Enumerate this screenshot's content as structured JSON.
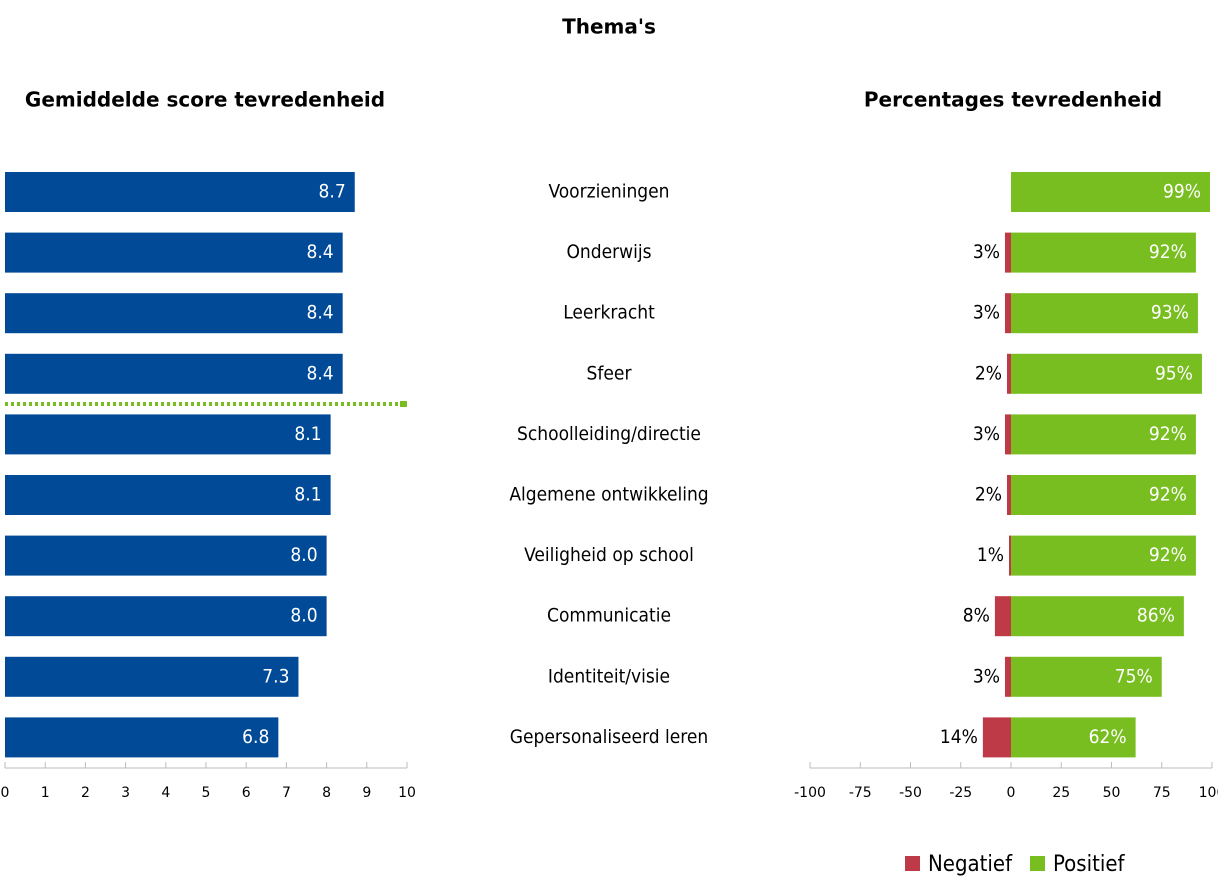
{
  "title": "Thema's",
  "chart_data": [
    {
      "type": "hbar",
      "title": "Gemiddelde score tevredenheid",
      "categories": [
        "Voorzieningen",
        "Onderwijs",
        "Leerkracht",
        "Sfeer",
        "Schoolleiding/directie",
        "Algemene ontwikkeling",
        "Veiligheid op school",
        "Communicatie",
        "Identiteit/visie",
        "Gepersonaliseerd leren"
      ],
      "values": [
        8.7,
        8.4,
        8.4,
        8.4,
        8.1,
        8.1,
        8.0,
        8.0,
        7.3,
        6.8
      ],
      "value_labels": [
        "8.7",
        "8.4",
        "8.4",
        "8.4",
        "8.1",
        "8.1",
        "8.0",
        "8.0",
        "7.3",
        "6.8"
      ],
      "color": "#004a97",
      "xlim": [
        0,
        10
      ],
      "xticks": [
        0,
        1,
        2,
        3,
        4,
        5,
        6,
        7,
        8,
        9,
        10
      ]
    },
    {
      "type": "diverging",
      "title": "Percentages tevredenheid",
      "series": [
        {
          "name": "Negatief",
          "color": "#be3a46",
          "values": [
            null,
            3,
            3,
            2,
            3,
            2,
            1,
            8,
            3,
            14
          ],
          "value_labels": [
            null,
            "3%",
            "3%",
            "2%",
            "3%",
            "2%",
            "1%",
            "8%",
            "3%",
            "14%"
          ]
        },
        {
          "name": "Positief",
          "color": "#78be20",
          "values": [
            99,
            92,
            93,
            95,
            92,
            92,
            92,
            86,
            75,
            62
          ],
          "value_labels": [
            "99%",
            "92%",
            "93%",
            "95%",
            "92%",
            "92%",
            "92%",
            "86%",
            "75%",
            "62%"
          ]
        }
      ],
      "xlim": [
        -100,
        100
      ],
      "xticks": [
        -100,
        -75,
        -50,
        -25,
        0,
        25,
        50,
        75,
        100
      ]
    }
  ]
}
